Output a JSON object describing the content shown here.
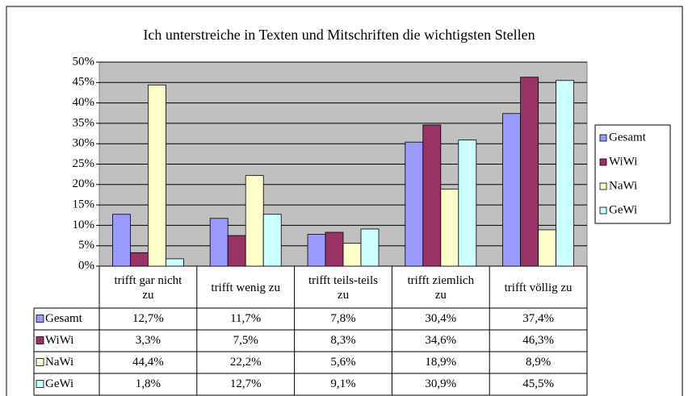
{
  "chart_data": {
    "type": "bar",
    "title": "Ich unterstreiche in Texten und Mitschriften die wichtigsten Stellen",
    "categories": [
      "trifft gar nicht zu",
      "trifft wenig zu",
      "trifft teils-teils zu",
      "trifft ziemlich zu",
      "trifft völlig zu"
    ],
    "series": [
      {
        "name": "Gesamt",
        "color": "#9999ff",
        "values": [
          12.7,
          11.7,
          7.8,
          30.4,
          37.4
        ],
        "value_labels": [
          "12,7%",
          "11,7%",
          "7,8%",
          "30,4%",
          "37,4%"
        ]
      },
      {
        "name": "WiWi",
        "color": "#993366",
        "values": [
          3.3,
          7.5,
          8.3,
          34.6,
          46.3
        ],
        "value_labels": [
          "3,3%",
          "7,5%",
          "8,3%",
          "34,6%",
          "46,3%"
        ]
      },
      {
        "name": "NaWi",
        "color": "#ffffcc",
        "values": [
          44.4,
          22.2,
          5.6,
          18.9,
          8.9
        ],
        "value_labels": [
          "44,4%",
          "22,2%",
          "5,6%",
          "18,9%",
          "8,9%"
        ]
      },
      {
        "name": "GeWi",
        "color": "#ccffff",
        "values": [
          1.8,
          12.7,
          9.1,
          30.9,
          45.5
        ],
        "value_labels": [
          "1,8%",
          "12,7%",
          "9,1%",
          "30,9%",
          "45,5%"
        ]
      }
    ],
    "ylim": [
      0,
      50
    ],
    "yticks": [
      {
        "value": 0,
        "label": "0%"
      },
      {
        "value": 5,
        "label": "5%"
      },
      {
        "value": 10,
        "label": "10%"
      },
      {
        "value": 15,
        "label": "15%"
      },
      {
        "value": 20,
        "label": "20%"
      },
      {
        "value": 25,
        "label": "25%"
      },
      {
        "value": 30,
        "label": "30%"
      },
      {
        "value": 35,
        "label": "35%"
      },
      {
        "value": 40,
        "label": "40%"
      },
      {
        "value": 45,
        "label": "45%"
      },
      {
        "value": 50,
        "label": "50%"
      }
    ],
    "grid": true,
    "legend": "right"
  }
}
